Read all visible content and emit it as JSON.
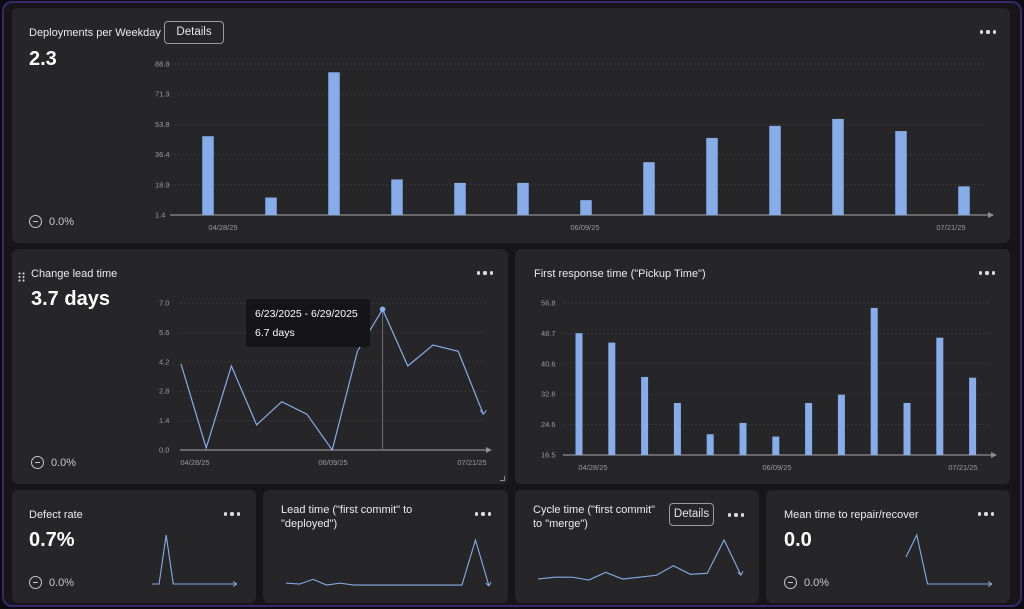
{
  "colors": {
    "bar": "#86acea",
    "line": "#86acea",
    "axis": "#8d8d93",
    "grid": "#3c3c40"
  },
  "deployments": {
    "title": "Deployments per Weekday",
    "details_label": "Details",
    "value": "2.3",
    "delta": "0.0%",
    "chart_data": {
      "type": "bar",
      "yticks": [
        "88.8",
        "71.3",
        "53.8",
        "36.4",
        "18.9",
        "1.4"
      ],
      "xticks": [
        "04/28/25",
        "06/09/25",
        "07/21/25"
      ],
      "ylim": [
        1.4,
        88.8
      ],
      "values": [
        47,
        11.5,
        84,
        22,
        20,
        20,
        10,
        32,
        46,
        53,
        57,
        50,
        18
      ]
    }
  },
  "change_lead": {
    "title": "Change lead time",
    "value": "3.7 days",
    "delta": "0.0%",
    "tooltip": {
      "range": "6/23/2025 - 6/29/2025",
      "value": "6.7 days"
    },
    "chart_data": {
      "type": "line",
      "yticks": [
        "7.0",
        "5.6",
        "4.2",
        "2.8",
        "1.4",
        "0.0"
      ],
      "xticks": [
        "04/28/25",
        "06/09/25",
        "07/21/25"
      ],
      "ylim": [
        0,
        7
      ],
      "values": [
        4.1,
        0.1,
        4.0,
        1.2,
        2.3,
        1.7,
        0.0,
        4.7,
        6.7,
        4.0,
        5.0,
        4.7,
        1.7
      ],
      "highlight_index": 8
    }
  },
  "first_response": {
    "title": "First response time (\"Pickup Time\")",
    "chart_data": {
      "type": "bar",
      "yticks": [
        "56.8",
        "48.7",
        "40.6",
        "32.6",
        "24.6",
        "16.5"
      ],
      "xticks": [
        "04/28/25",
        "06/09/25",
        "07/21/25"
      ],
      "ylim": [
        16.5,
        56.8
      ],
      "values": [
        48.8,
        46.3,
        37.2,
        30.3,
        22.0,
        25.0,
        21.4,
        30.3,
        32.5,
        55.5,
        30.3,
        47.6,
        37.0
      ]
    }
  },
  "defect": {
    "title": "Defect rate",
    "value": "0.7%",
    "delta": "0.0%",
    "chart_data": {
      "type": "line",
      "values": [
        0,
        0,
        1,
        0,
        0,
        0,
        0,
        0,
        0,
        0,
        0,
        0,
        0
      ]
    }
  },
  "lead_deploy": {
    "title": "Lead time (\"first commit\" to \"deployed\")",
    "chart_data": {
      "type": "line",
      "values": [
        0.5,
        0.4,
        0.9,
        0.3,
        0.5,
        0.3,
        0.3,
        0.3,
        0.3,
        0.3,
        0.3,
        0.3,
        0.3,
        0.3,
        5.0,
        0.2
      ]
    }
  },
  "cycle": {
    "title": "Cycle time (\"first commit\" to \"merge\")",
    "details_label": "Details",
    "chart_data": {
      "type": "line",
      "values": [
        0.9,
        1.1,
        1.1,
        0.8,
        1.6,
        0.9,
        1.1,
        1.3,
        2.3,
        1.4,
        1.5,
        5.0,
        1.3
      ]
    }
  },
  "mttr": {
    "title": "Mean time to repair/recover",
    "value": "0.0",
    "delta": "0.0%",
    "chart_data": {
      "type": "line",
      "values": [
        0.55,
        1.0,
        0.0,
        0.0,
        0.0,
        0.0,
        0.0,
        0.0,
        0.0
      ]
    }
  }
}
